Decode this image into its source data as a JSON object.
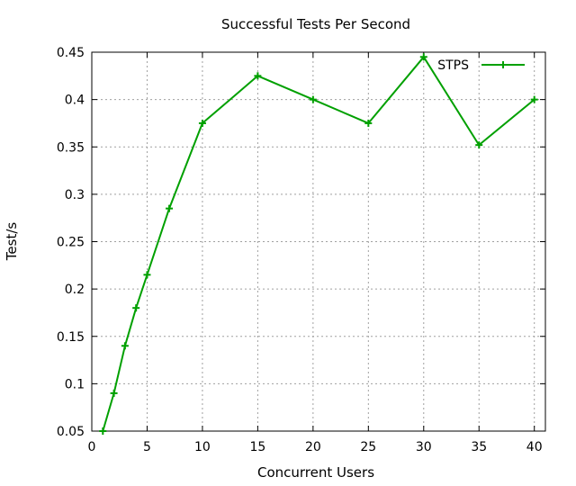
{
  "chart_data": {
    "type": "line",
    "title": "Successful Tests Per Second",
    "xlabel": "Concurrent Users",
    "ylabel": "Test/s",
    "xlim": [
      0,
      41
    ],
    "ylim": [
      0.05,
      0.45
    ],
    "x_ticks": [
      "0",
      "5",
      "10",
      "15",
      "20",
      "25",
      "30",
      "35",
      "40"
    ],
    "y_ticks": [
      "0.05",
      "0.1",
      "0.15",
      "0.2",
      "0.25",
      "0.3",
      "0.35",
      "0.4",
      "0.45"
    ],
    "grid": true,
    "legend": "top-right",
    "series": [
      {
        "name": "STPS",
        "color": "#00a000",
        "marker": "plus",
        "x": [
          1,
          2,
          3,
          4,
          5,
          7,
          10,
          15,
          20,
          25,
          30,
          35,
          40
        ],
        "y": [
          0.05,
          0.09,
          0.14,
          0.18,
          0.215,
          0.285,
          0.375,
          0.425,
          0.4,
          0.375,
          0.445,
          0.352,
          0.4
        ]
      }
    ]
  }
}
